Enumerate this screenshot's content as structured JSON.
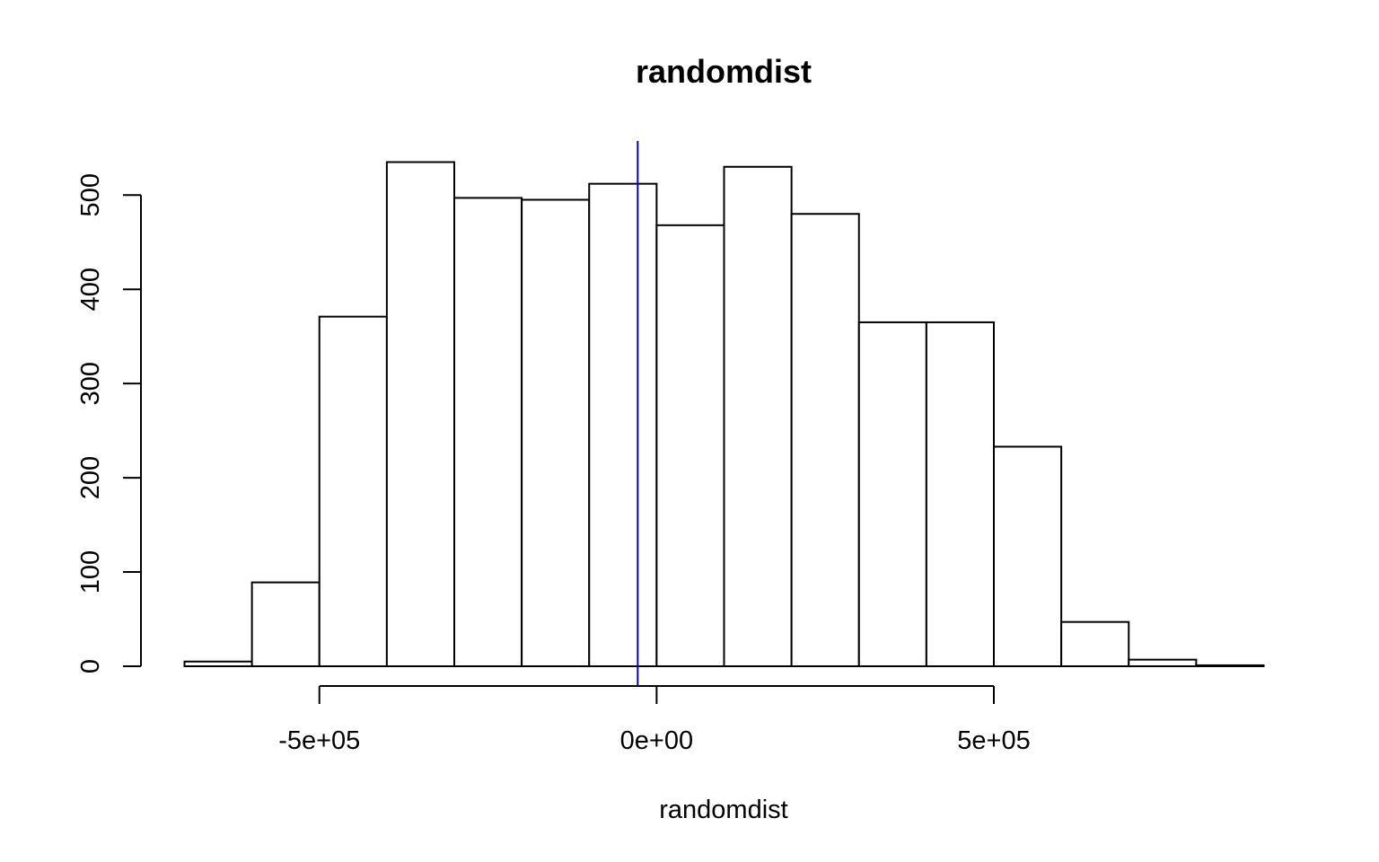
{
  "chart_data": {
    "type": "bar",
    "title": "randomdist",
    "xlabel": "randomdist",
    "ylabel": "",
    "bin_edges": [
      -700000,
      -600000,
      -500000,
      -400000,
      -300000,
      -200000,
      -100000,
      0,
      100000,
      200000,
      300000,
      400000,
      500000,
      600000,
      700000,
      800000,
      900000
    ],
    "counts": [
      5,
      89,
      371,
      535,
      497,
      495,
      512,
      468,
      530,
      480,
      365,
      365,
      233,
      47,
      7,
      1
    ],
    "xlim": [
      -700000,
      900000
    ],
    "ylim": [
      0,
      550
    ],
    "x_ticks": [
      -500000,
      0,
      500000
    ],
    "x_tick_labels": [
      "-5e+05",
      "0e+00",
      "5e+05"
    ],
    "y_ticks": [
      0,
      100,
      200,
      300,
      400,
      500
    ],
    "y_tick_labels": [
      "0",
      "100",
      "200",
      "300",
      "400",
      "500"
    ],
    "vertical_line": {
      "x": -28000,
      "color": "#0000cc"
    },
    "grid": false,
    "legend": "none"
  }
}
